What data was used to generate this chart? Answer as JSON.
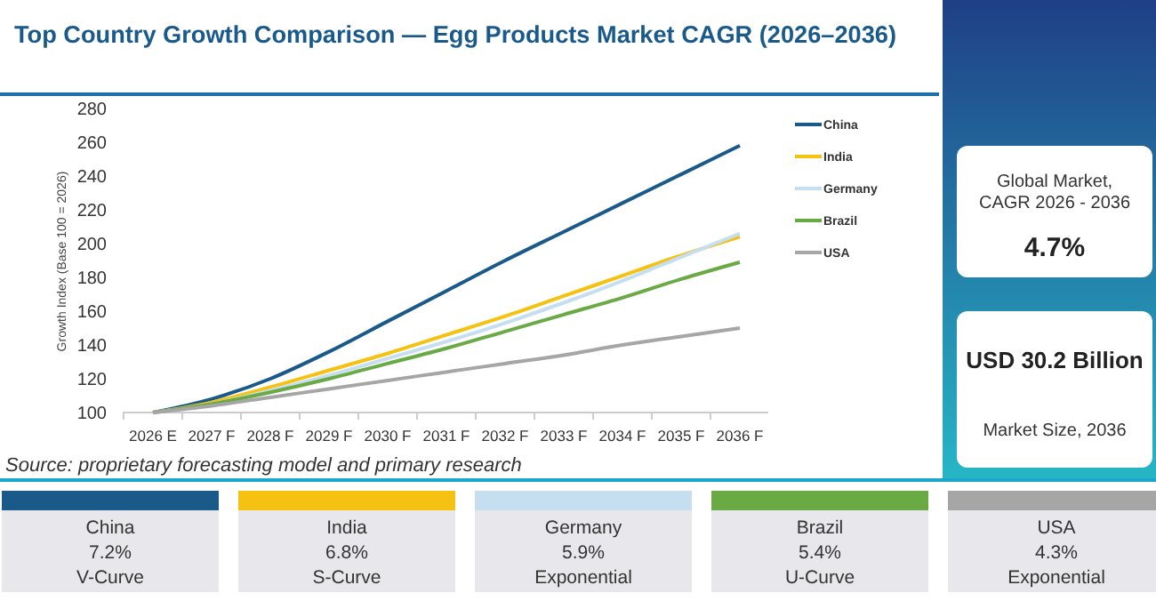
{
  "chart_data": [
    {
      "type": "line",
      "title": "Top Country Growth Comparison — Egg Products Market CAGR (2026–2036)",
      "ylabel": "Growth Index (Base 100 = 2026)",
      "categories": [
        "2026 E",
        "2027 F",
        "2028 F",
        "2029 F",
        "2030 F",
        "2031 F",
        "2032 F",
        "2033 F",
        "2034 F",
        "2035 F",
        "2036 F"
      ],
      "series": [
        {
          "name": "China",
          "color": "#1a5a8a",
          "values": [
            100,
            108,
            120,
            136,
            154,
            172,
            190,
            207,
            224,
            241,
            258
          ]
        },
        {
          "name": "India",
          "color": "#f5c211",
          "values": [
            100,
            106,
            115,
            125,
            135,
            146,
            157,
            169,
            181,
            193,
            204
          ]
        },
        {
          "name": "Germany",
          "color": "#c5def0",
          "values": [
            100,
            105,
            113,
            122,
            132,
            142,
            153,
            165,
            178,
            192,
            206
          ]
        },
        {
          "name": "Brazil",
          "color": "#6aaa45",
          "values": [
            100,
            105,
            112,
            120,
            129,
            138,
            148,
            158,
            168,
            179,
            189
          ]
        },
        {
          "name": "USA",
          "color": "#a6a6a6",
          "values": [
            100,
            104,
            109,
            114,
            119,
            124,
            129,
            134,
            140,
            145,
            150
          ]
        }
      ],
      "ylim": [
        100,
        280
      ],
      "yticks": [
        100,
        120,
        140,
        160,
        180,
        200,
        220,
        240,
        260,
        280
      ],
      "grid": false,
      "legend": "right",
      "marker": "none",
      "line_style": "solid",
      "annotations": [
        "Source: proprietary forecasting model and primary research"
      ]
    },
    {
      "type": "other",
      "annotations": [
        "Global Market, CAGR 2026 - 2036",
        "4.7%",
        "USD 30.2 Billion",
        "Market Size, 2036"
      ]
    },
    {
      "type": "other",
      "categories": [
        "China",
        "India",
        "Germany",
        "Brazil",
        "USA"
      ],
      "colors": [
        "#1a5a8a",
        "#f5c211",
        "#c5def0",
        "#6aaa45",
        "#a6a6a6"
      ],
      "annotations": [
        "7.2%",
        "V-Curve",
        "6.8%",
        "S-Curve",
        "5.9%",
        "Exponential",
        "5.4%",
        "U-Curve",
        "4.3%",
        "Exponential"
      ]
    }
  ]
}
